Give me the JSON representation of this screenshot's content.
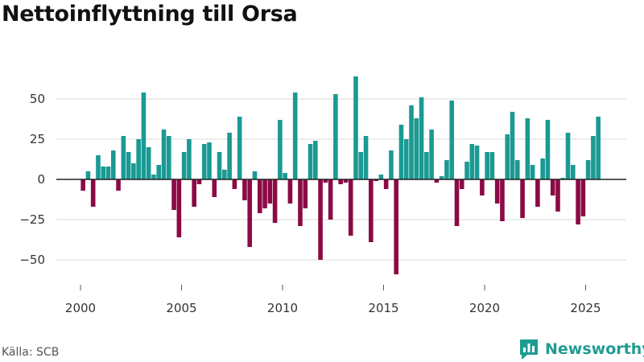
{
  "header": {
    "title": "Nettoinflyttning till Orsa"
  },
  "footer": {
    "source": "Källa: SCB",
    "brand": "Newsworthy"
  },
  "colors": {
    "positive": "#1a9a93",
    "negative": "#8b0a45",
    "grid": "#d9d9d9",
    "zero": "#222222",
    "brand": "#1f9c92"
  },
  "brand_icon": "bar-chart-speech-bubble-icon",
  "chart_data": {
    "type": "bar",
    "title": "Nettoinflyttning till Orsa",
    "xlabel": "",
    "ylabel": "",
    "frequency": "quarterly",
    "first_period": "2000 Q1",
    "ylim": [
      -65,
      70
    ],
    "yticks": [
      -50,
      -25,
      0,
      25,
      50
    ],
    "xticks": [
      2000,
      2005,
      2010,
      2015,
      2020,
      2025
    ],
    "grid": true,
    "values": [
      -7,
      5,
      -17,
      15,
      8,
      8,
      18,
      -7,
      27,
      17,
      10,
      25,
      54,
      20,
      3,
      9,
      31,
      27,
      -19,
      -36,
      17,
      25,
      -17,
      -3,
      22,
      23,
      -11,
      17,
      6,
      29,
      -6,
      39,
      -13,
      -42,
      5,
      -21,
      -18,
      -15,
      -27,
      37,
      4,
      -15,
      54,
      -29,
      -18,
      22,
      24,
      -50,
      -2,
      -25,
      53,
      -3,
      -2,
      -35,
      64,
      17,
      27,
      -39,
      -1,
      3,
      -6,
      18,
      -59,
      34,
      25,
      46,
      38,
      51,
      17,
      31,
      -2,
      2,
      12,
      49,
      -29,
      -6,
      11,
      22,
      21,
      -10,
      17,
      17,
      -15,
      -26,
      28,
      42,
      12,
      -24,
      38,
      9,
      -17,
      13,
      37,
      -10,
      -20,
      1,
      29,
      9,
      -28,
      -23,
      12,
      27,
      39
    ]
  }
}
